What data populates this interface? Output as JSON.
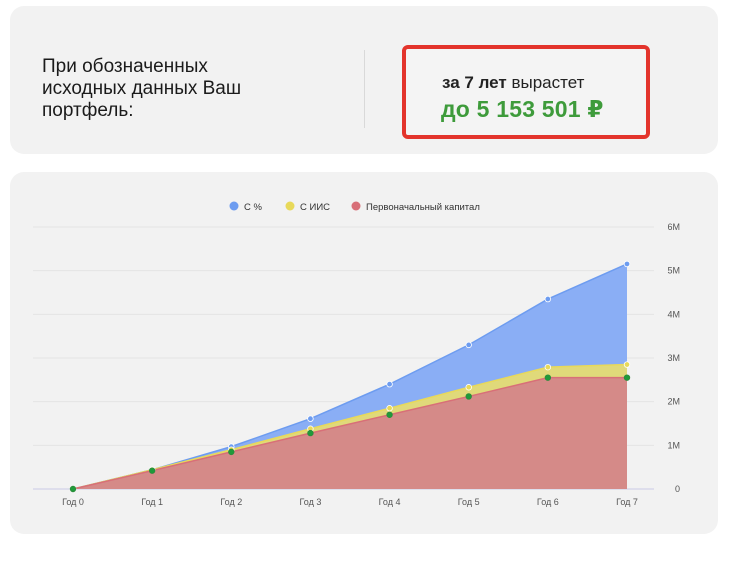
{
  "summary": {
    "description": "При обозначенных исходных данных Ваш портфель:",
    "period_bold": "за 7 лет",
    "grows_word": "вырастет",
    "amount": "до 5 153 501 ₽"
  },
  "colors": {
    "accent_green": "#3e9b3b",
    "highlight_border": "#e3342c",
    "series_percent": "#8aaef5",
    "series_iis": "#e0d97a",
    "series_capital": "#d58a88",
    "point_green": "#1f9a3a"
  },
  "chart_data": {
    "type": "area",
    "stacked_visual": true,
    "categories": [
      "Год 0",
      "Год 1",
      "Год 2",
      "Год 3",
      "Год 4",
      "Год 5",
      "Год 6",
      "Год 7"
    ],
    "yticks": [
      "0",
      "1M",
      "2M",
      "3M",
      "4M",
      "5M",
      "6M"
    ],
    "ylim": [
      0,
      6000000
    ],
    "y_axis_side": "right",
    "grid": true,
    "legend_position": "top",
    "series": [
      {
        "name": "С %",
        "color": "#6d9cf0",
        "fill": "#8aaef5",
        "values": [
          0,
          440000,
          970000,
          1610000,
          2400000,
          3300000,
          4350000,
          5153501
        ]
      },
      {
        "name": "С ИИС",
        "color": "#e8d95a",
        "fill": "#e0d97a",
        "values": [
          0,
          440000,
          900000,
          1380000,
          1850000,
          2330000,
          2790000,
          2850000
        ]
      },
      {
        "name": "Первоначальный капитал",
        "color": "#d86f78",
        "fill": "#d58a88",
        "values": [
          0,
          420000,
          850000,
          1280000,
          1700000,
          2120000,
          2550000,
          2550000
        ]
      }
    ]
  }
}
